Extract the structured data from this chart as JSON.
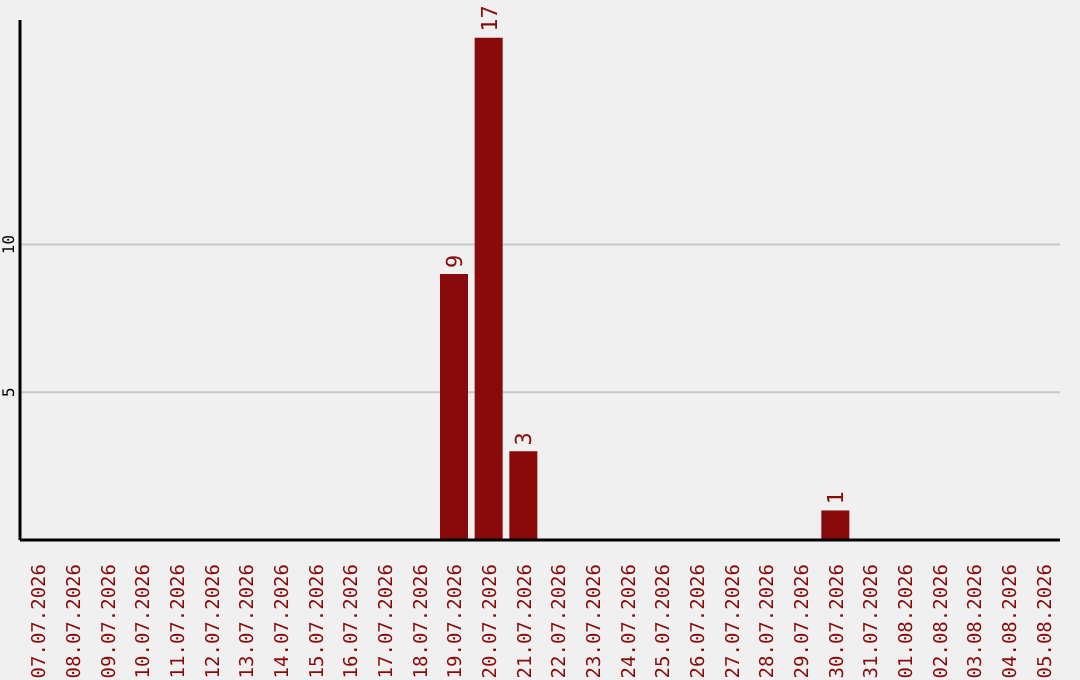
{
  "chart_data": {
    "type": "bar",
    "categories": [
      "07.07.2026",
      "08.07.2026",
      "09.07.2026",
      "10.07.2026",
      "11.07.2026",
      "12.07.2026",
      "13.07.2026",
      "14.07.2026",
      "15.07.2026",
      "16.07.2026",
      "17.07.2026",
      "18.07.2026",
      "19.07.2026",
      "20.07.2026",
      "21.07.2026",
      "22.07.2026",
      "23.07.2026",
      "24.07.2026",
      "25.07.2026",
      "26.07.2026",
      "27.07.2026",
      "28.07.2026",
      "29.07.2026",
      "30.07.2026",
      "31.07.2026",
      "01.08.2026",
      "02.08.2026",
      "03.08.2026",
      "04.08.2026",
      "05.08.2026"
    ],
    "values": [
      0,
      0,
      0,
      0,
      0,
      0,
      0,
      0,
      0,
      0,
      0,
      0,
      9,
      17,
      3,
      0,
      0,
      0,
      0,
      0,
      0,
      0,
      0,
      1,
      0,
      0,
      0,
      0,
      0,
      0
    ],
    "value_labels": [
      null,
      null,
      null,
      null,
      null,
      null,
      null,
      null,
      null,
      null,
      null,
      null,
      "9",
      "17",
      "3",
      null,
      null,
      null,
      null,
      null,
      null,
      null,
      null,
      "1",
      null,
      null,
      null,
      null,
      null,
      null
    ],
    "color": "#880a0a",
    "ylim": [
      0,
      17.6
    ],
    "yticks": [
      5,
      10
    ],
    "grid": "y"
  }
}
